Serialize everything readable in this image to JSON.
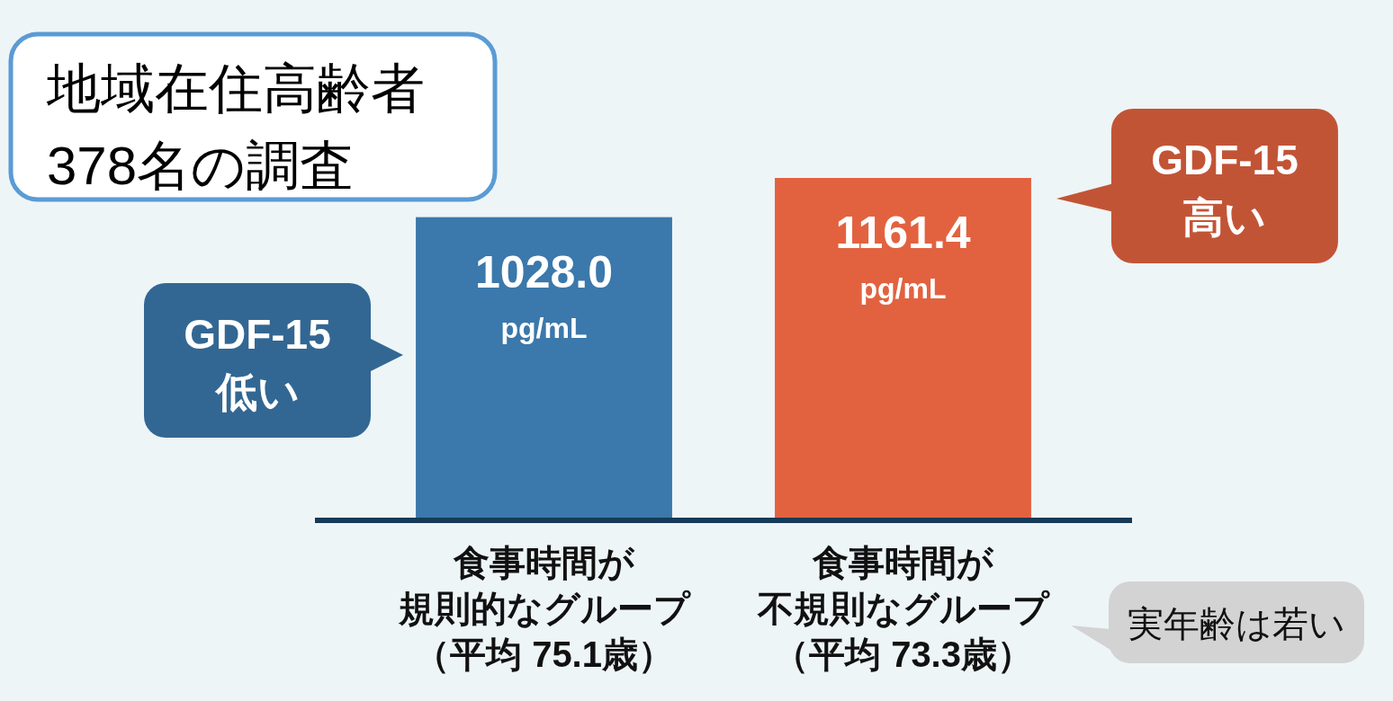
{
  "chart_data": {
    "type": "bar",
    "title": "地域在住高齢者\n378名の調査",
    "categories": [
      "食事時間が規則的なグループ（平均 75.1歳）",
      "食事時間が不規則なグループ（平均 73.3歳）"
    ],
    "values": [
      1028.0,
      1161.4
    ],
    "colors": [
      "#3b78ab",
      "#e2623f"
    ],
    "value_labels": [
      "1028.0\npg/mL",
      "1161.4\npg/mL"
    ],
    "tick_labels": "x",
    "annotations": [
      "GDF-15\n低い",
      "GDF-15\n高い",
      "実年齢は若い"
    ]
  }
}
